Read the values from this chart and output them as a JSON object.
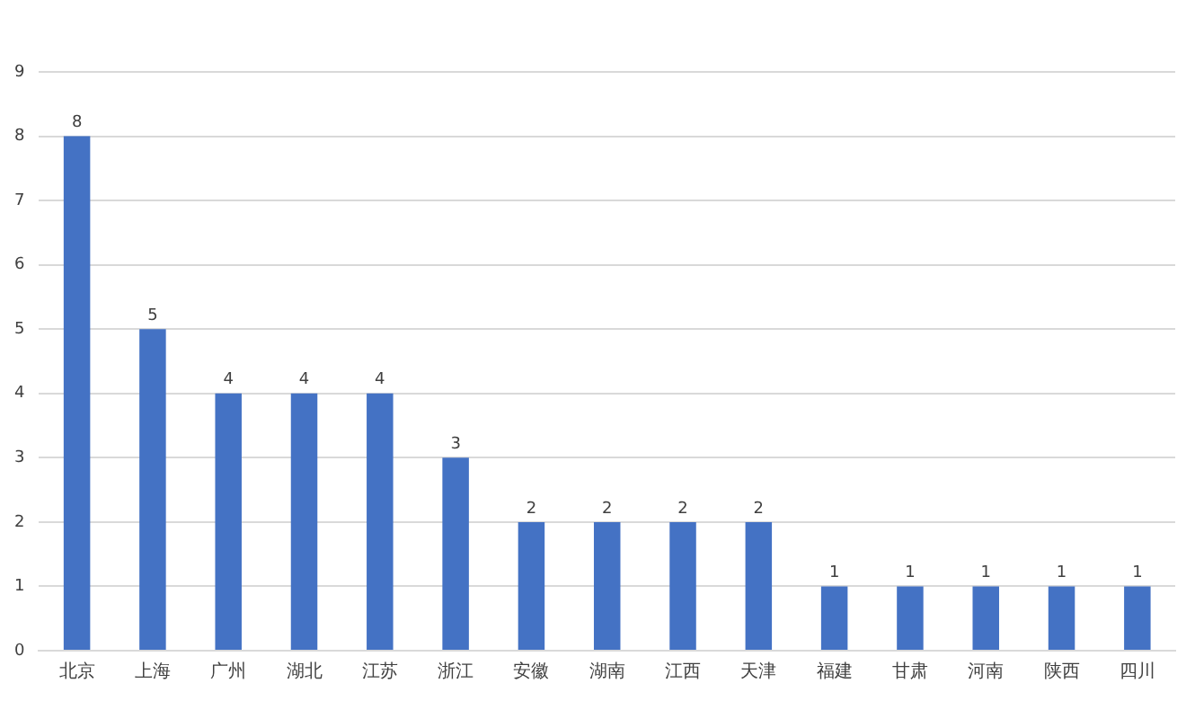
{
  "chart_data": {
    "type": "bar",
    "categories": [
      "北京",
      "上海",
      "广州",
      "湖北",
      "江苏",
      "浙江",
      "安徽",
      "湖南",
      "江西",
      "天津",
      "福建",
      "甘肃",
      "河南",
      "陕西",
      "四川"
    ],
    "values": [
      8,
      5,
      4,
      4,
      4,
      3,
      2,
      2,
      2,
      2,
      1,
      1,
      1,
      1,
      1
    ],
    "color": "#4472c4",
    "ylim": [
      0,
      9
    ],
    "yticks": [
      0,
      1,
      2,
      3,
      4,
      5,
      6,
      7,
      8,
      9
    ],
    "grid": "y",
    "legend": false,
    "data_labels": true
  }
}
